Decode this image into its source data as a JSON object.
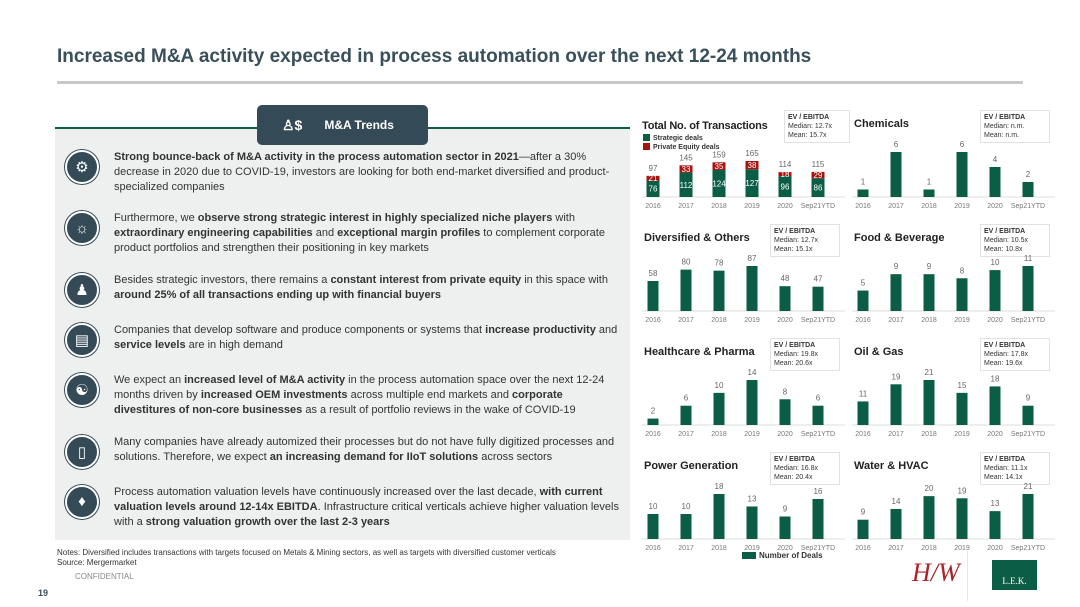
{
  "page_title": "Increased M&A activity expected in process automation over the next 12-24 months",
  "trend_tab": "M&A Trends",
  "items": [
    {
      "icon": "org-chart-icon",
      "bold1": "Strong bounce-back of M&A activity in the process automation sector in 2021",
      "rest": "—after a 30% decrease in 2020 due to COVID-19, investors are looking for both end-market diversified and product-specialized companies"
    },
    {
      "icon": "lightbulb-icon",
      "pre": "Furthermore, we ",
      "bold1": "observe strong strategic interest in highly specialized niche players",
      "mid": " with ",
      "bold2": "extraordinary engineering capabilities",
      "mid2": " and ",
      "bold3": "exceptional margin profiles",
      "rest": " to complement corporate product portfolios and strengthen their positioning in key markets"
    },
    {
      "icon": "investor-icon",
      "pre": "Besides strategic investors, there remains a ",
      "bold1": "constant interest from private equity",
      "mid": " in this space with ",
      "bold2": "around 25% of all transactions ending up with financial buyers"
    },
    {
      "icon": "document-icon",
      "pre": "Companies that develop software and produce components or systems that ",
      "bold1": "increase productivity",
      "mid": " and ",
      "bold2": "service levels",
      "rest": " are in high demand"
    },
    {
      "icon": "handshake-icon",
      "pre": "We expect an ",
      "bold1": "increased level of M&A activity",
      "mid": " in the process automation space over the next 12-24 months driven by ",
      "bold2": "increased OEM investments",
      "mid2": " across multiple end markets and ",
      "bold3": "corporate divestitures of non-core businesses",
      "rest": " as a result of portfolio reviews in the wake of COVID-19"
    },
    {
      "icon": "tablet-icon",
      "pre": "Many companies have already automized their processes but do not have fully digitized processes and solutions. Therefore, we expect ",
      "bold1": "an increasing demand for IIoT solutions",
      "rest": " across sectors"
    },
    {
      "icon": "valuation-icon",
      "pre": "Process automation valuation levels have continuously increased over the last decade, ",
      "bold1": "with current valuation levels around 12-14x EBITDA",
      "mid": ". Infrastructure critical verticals achieve higher valuation levels with a ",
      "bold2": "strong valuation growth over the last 2-3 years"
    }
  ],
  "colors": {
    "strategic": "#0b5e45",
    "pe": "#a8120f",
    "title": "#3a4f5c"
  },
  "chart_data": [
    {
      "type": "bar",
      "title": "Total No. of Transactions",
      "stacked": true,
      "categories": [
        "2016",
        "2017",
        "2018",
        "2019",
        "2020",
        "Sep21YTD"
      ],
      "series": [
        {
          "name": "Strategic deals",
          "values": [
            76,
            112,
            124,
            127,
            96,
            86
          ]
        },
        {
          "name": "Private Equity deals",
          "values": [
            21,
            33,
            35,
            38,
            18,
            29
          ]
        }
      ],
      "totals": [
        97,
        145,
        159,
        165,
        114,
        115
      ],
      "ev_label": "EV / EBITDA",
      "median": "Median: 12.7x",
      "mean": "Mean: 15.7x",
      "legend": "top-left"
    },
    {
      "type": "bar",
      "title": "Chemicals",
      "categories": [
        "2016",
        "2017",
        "2018",
        "2019",
        "2020",
        "Sep21YTD"
      ],
      "values": [
        1,
        6,
        1,
        6,
        4,
        2
      ],
      "ev_label": "EV / EBITDA",
      "median": "Median: n.m.",
      "mean": "Mean: n.m."
    },
    {
      "type": "bar",
      "title": "Diversified & Others",
      "categories": [
        "2016",
        "2017",
        "2018",
        "2019",
        "2020",
        "Sep21YTD"
      ],
      "values": [
        58,
        80,
        78,
        87,
        48,
        47
      ],
      "ev_label": "EV / EBITDA",
      "median": "Median: 12.7x",
      "mean": "Mean: 15.1x"
    },
    {
      "type": "bar",
      "title": "Food & Beverage",
      "categories": [
        "2016",
        "2017",
        "2018",
        "2019",
        "2020",
        "Sep21YTD"
      ],
      "values": [
        5,
        9,
        9,
        8,
        10,
        11
      ],
      "ev_label": "EV / EBITDA",
      "median": "Median: 10.5x",
      "mean": "Mean: 10.8x"
    },
    {
      "type": "bar",
      "title": "Healthcare & Pharma",
      "categories": [
        "2016",
        "2017",
        "2018",
        "2019",
        "2020",
        "Sep21YTD"
      ],
      "values": [
        2,
        6,
        10,
        14,
        8,
        6
      ],
      "ev_label": "EV / EBITDA",
      "median": "Median: 19.8x",
      "mean": "Mean: 20.6x"
    },
    {
      "type": "bar",
      "title": "Oil & Gas",
      "categories": [
        "2016",
        "2017",
        "2018",
        "2019",
        "2020",
        "Sep21YTD"
      ],
      "values": [
        11,
        19,
        21,
        15,
        18,
        9
      ],
      "ev_label": "EV / EBITDA",
      "median": "Median: 17.8x",
      "mean": "Mean: 19.6x"
    },
    {
      "type": "bar",
      "title": "Power Generation",
      "categories": [
        "2016",
        "2017",
        "2018",
        "2019",
        "2020",
        "Sep21YTD"
      ],
      "values": [
        10,
        10,
        18,
        13,
        9,
        16
      ],
      "ev_label": "EV / EBITDA",
      "median": "Median: 16.8x",
      "mean": "Mean: 20.4x"
    },
    {
      "type": "bar",
      "title": "Water & HVAC",
      "categories": [
        "2016",
        "2017",
        "2018",
        "2019",
        "2020",
        "Sep21YTD"
      ],
      "values": [
        9,
        14,
        20,
        19,
        13,
        21
      ],
      "ev_label": "EV / EBITDA",
      "median": "Median: 11.1x",
      "mean": "Mean: 14.1x"
    }
  ],
  "bottom_legend": "Number of Deals",
  "notes": "Notes: Diversified includes transactions with targets focused on Metals & Mining sectors, as well as targets with diversified customer verticals",
  "source": "Source: Mergermarket",
  "confidential": "CONFIDENTIAL",
  "page_number": "19",
  "logo_hw": "HW",
  "logo_lek": "L.E.K."
}
